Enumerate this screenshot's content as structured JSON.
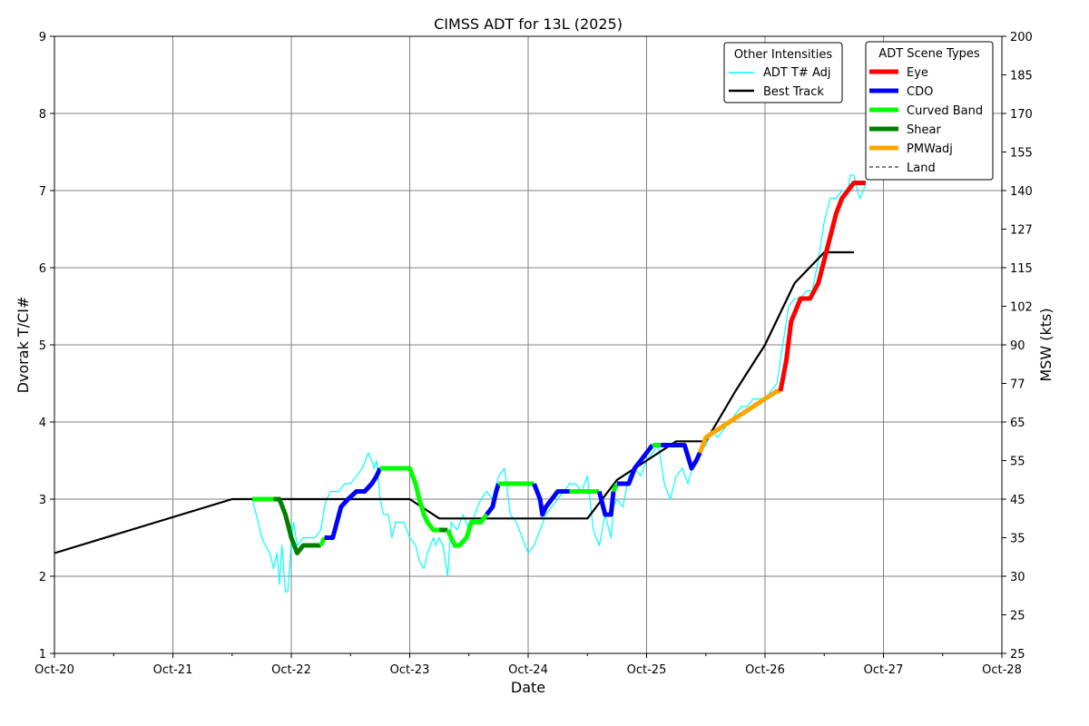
{
  "chart_data": {
    "type": "line",
    "title": "CIMSS ADT for 13L (2025)",
    "xlabel": "Date",
    "ylabel_left": "Dvorak T/CI#",
    "ylabel_right": "MSW (kts)",
    "x_ticks": [
      "Oct-20",
      "Oct-21",
      "Oct-22",
      "Oct-23",
      "Oct-24",
      "Oct-25",
      "Oct-26",
      "Oct-27",
      "Oct-28"
    ],
    "xlim": [
      "Oct-20",
      "Oct-28"
    ],
    "ylim_left": [
      1,
      9
    ],
    "y_ticks_left": [
      1,
      2,
      3,
      4,
      5,
      6,
      7,
      8,
      9
    ],
    "y_ticks_right": [
      {
        "t": 1,
        "label": "25"
      },
      {
        "t": 1.5,
        "label": "25"
      },
      {
        "t": 2,
        "label": "30"
      },
      {
        "t": 2.5,
        "label": "35"
      },
      {
        "t": 3,
        "label": "45"
      },
      {
        "t": 3.5,
        "label": "55"
      },
      {
        "t": 4,
        "label": "65"
      },
      {
        "t": 4.5,
        "label": "77"
      },
      {
        "t": 5,
        "label": "90"
      },
      {
        "t": 5.5,
        "label": "102"
      },
      {
        "t": 6,
        "label": "115"
      },
      {
        "t": 6.5,
        "label": "127"
      },
      {
        "t": 7,
        "label": "140"
      },
      {
        "t": 7.5,
        "label": "155"
      },
      {
        "t": 8,
        "label": "170"
      },
      {
        "t": 8.5,
        "label": "185"
      },
      {
        "t": 9,
        "label": "200"
      }
    ],
    "grid": true,
    "legends": [
      {
        "title": "Other Intensities",
        "placement": "top-right",
        "items": [
          {
            "label": "ADT T# Adj",
            "color": "#00ffff",
            "style": "thin"
          },
          {
            "label": "Best Track",
            "color": "#000000",
            "style": "medium"
          }
        ]
      },
      {
        "title": "ADT Scene Types",
        "placement": "top-right",
        "items": [
          {
            "label": "Eye",
            "color": "#ff0000",
            "style": "thick"
          },
          {
            "label": "CDO",
            "color": "#0000ff",
            "style": "thick"
          },
          {
            "label": "Curved Band",
            "color": "#00ff00",
            "style": "thick"
          },
          {
            "label": "Shear",
            "color": "#008000",
            "style": "thick"
          },
          {
            "label": "PMWadj",
            "color": "#ffa500",
            "style": "thick"
          },
          {
            "label": "Land",
            "color": "#000000",
            "style": "dashed"
          }
        ]
      }
    ],
    "series": [
      {
        "name": "Best Track",
        "color": "#000000",
        "x": [
          20.0,
          21.5,
          23.0,
          23.25,
          24.5,
          24.75,
          25.25,
          25.5,
          25.75,
          26.0,
          26.25,
          26.5,
          26.75
        ],
        "y": [
          2.3,
          3.0,
          3.0,
          2.75,
          2.75,
          3.25,
          3.75,
          3.75,
          4.4,
          5.0,
          5.8,
          6.2,
          6.2
        ]
      },
      {
        "name": "ADT T# Adj",
        "color": "#00ffff",
        "x": [
          21.67,
          21.72,
          21.75,
          21.78,
          21.82,
          21.85,
          21.88,
          21.9,
          21.92,
          21.95,
          21.97,
          21.99,
          22.0,
          22.02,
          22.05,
          22.1,
          22.15,
          22.2,
          22.25,
          22.28,
          22.3,
          22.33,
          22.36,
          22.4,
          22.45,
          22.5,
          22.55,
          22.6,
          22.65,
          22.68,
          22.7,
          22.72,
          22.75,
          22.78,
          22.82,
          22.85,
          22.88,
          22.9,
          22.95,
          23.0,
          23.05,
          23.08,
          23.12,
          23.15,
          23.2,
          23.22,
          23.25,
          23.28,
          23.32,
          23.35,
          23.4,
          23.45,
          23.5,
          23.55,
          23.6,
          23.65,
          23.7,
          23.75,
          23.8,
          23.85,
          23.9,
          23.95,
          24.0,
          24.05,
          24.1,
          24.15,
          24.2,
          24.25,
          24.3,
          24.35,
          24.4,
          24.45,
          24.5,
          24.55,
          24.6,
          24.65,
          24.7,
          24.72,
          24.75,
          24.8,
          24.85,
          24.9,
          24.95,
          25.0,
          25.05,
          25.1,
          25.15,
          25.2,
          25.25,
          25.3,
          25.35,
          25.4,
          25.45,
          25.5,
          25.55,
          25.6,
          25.65,
          25.7,
          25.75,
          25.8,
          25.85,
          25.9,
          25.95,
          26.0,
          26.05,
          26.1,
          26.15,
          26.2,
          26.25,
          26.3,
          26.35,
          26.4,
          26.45,
          26.5,
          26.55,
          26.6,
          26.65,
          26.7,
          26.72,
          26.75,
          26.78,
          26.8,
          26.83,
          26.85
        ],
        "y": [
          3.0,
          2.7,
          2.5,
          2.4,
          2.3,
          2.1,
          2.3,
          1.9,
          2.4,
          1.8,
          1.8,
          2.2,
          2.5,
          2.7,
          2.4,
          2.5,
          2.5,
          2.5,
          2.6,
          2.9,
          3.0,
          3.1,
          3.1,
          3.1,
          3.2,
          3.2,
          3.3,
          3.4,
          3.6,
          3.5,
          3.4,
          3.5,
          3.0,
          2.8,
          2.8,
          2.5,
          2.7,
          2.7,
          2.7,
          2.5,
          2.4,
          2.2,
          2.1,
          2.3,
          2.5,
          2.4,
          2.5,
          2.4,
          2.0,
          2.7,
          2.6,
          2.8,
          2.6,
          2.8,
          3.0,
          3.1,
          3.0,
          3.3,
          3.4,
          2.8,
          2.7,
          2.5,
          2.3,
          2.4,
          2.6,
          2.8,
          2.9,
          3.0,
          3.1,
          3.2,
          3.2,
          3.1,
          3.3,
          2.6,
          2.4,
          2.8,
          2.5,
          2.9,
          3.0,
          2.9,
          3.3,
          3.4,
          3.3,
          3.5,
          3.6,
          3.7,
          3.2,
          3.0,
          3.3,
          3.4,
          3.2,
          3.5,
          3.6,
          3.7,
          3.9,
          3.8,
          3.9,
          4.0,
          4.1,
          4.2,
          4.2,
          4.3,
          4.3,
          4.3,
          4.4,
          4.5,
          5.0,
          5.5,
          5.6,
          5.6,
          5.7,
          5.7,
          6.1,
          6.6,
          6.9,
          6.9,
          7.0,
          7.0,
          7.2,
          7.2,
          7.0,
          6.9,
          7.0,
          7.1
        ],
        "scene_segments": [
          {
            "type": "Curved Band",
            "x": [
              21.67,
              21.85
            ],
            "y": [
              3.0,
              3.0
            ]
          },
          {
            "type": "Shear",
            "x": [
              21.85,
              21.9,
              21.95,
              22.0,
              22.05,
              22.1,
              22.15,
              22.25
            ],
            "y": [
              3.0,
              3.0,
              2.8,
              2.5,
              2.3,
              2.4,
              2.4,
              2.4
            ]
          },
          {
            "type": "Curved Band",
            "x": [
              22.25,
              22.28
            ],
            "y": [
              2.4,
              2.5
            ]
          },
          {
            "type": "CDO",
            "x": [
              22.28,
              22.35,
              22.42,
              22.48,
              22.55,
              22.62,
              22.68,
              22.72,
              22.75
            ],
            "y": [
              2.5,
              2.5,
              2.9,
              3.0,
              3.1,
              3.1,
              3.2,
              3.3,
              3.4
            ]
          },
          {
            "type": "Curved Band",
            "x": [
              22.75,
              23.0,
              23.05,
              23.08,
              23.12,
              23.15,
              23.2,
              23.28,
              23.3
            ],
            "y": [
              3.4,
              3.4,
              3.2,
              3.0,
              2.8,
              2.7,
              2.6,
              2.6,
              2.6
            ]
          },
          {
            "type": "Shear",
            "x": [
              23.25,
              23.3,
              23.32
            ],
            "y": [
              2.6,
              2.6,
              2.6
            ]
          },
          {
            "type": "Curved Band",
            "x": [
              23.32,
              23.38,
              23.42,
              23.48,
              23.52,
              23.6,
              23.65
            ],
            "y": [
              2.6,
              2.4,
              2.4,
              2.5,
              2.7,
              2.7,
              2.8
            ]
          },
          {
            "type": "CDO",
            "x": [
              23.65,
              23.7,
              23.73,
              23.75
            ],
            "y": [
              2.8,
              2.9,
              3.1,
              3.2
            ]
          },
          {
            "type": "Curved Band",
            "x": [
              23.75,
              24.05
            ],
            "y": [
              3.2,
              3.2
            ]
          },
          {
            "type": "CDO",
            "x": [
              24.05,
              24.1,
              24.12,
              24.15,
              24.2,
              24.25,
              24.3,
              24.35
            ],
            "y": [
              3.2,
              3.0,
              2.8,
              2.9,
              3.0,
              3.1,
              3.1,
              3.1
            ]
          },
          {
            "type": "Curved Band",
            "x": [
              24.35,
              24.6
            ],
            "y": [
              3.1,
              3.1
            ]
          },
          {
            "type": "CDO",
            "x": [
              24.6,
              24.65,
              24.7,
              24.72
            ],
            "y": [
              3.1,
              2.8,
              2.8,
              3.1
            ]
          },
          {
            "type": "Curved Band",
            "x": [
              24.72,
              24.75
            ],
            "y": [
              3.1,
              3.2
            ]
          },
          {
            "type": "CDO",
            "x": [
              24.75,
              24.8,
              24.85,
              24.9,
              24.95,
              25.0,
              25.05
            ],
            "y": [
              3.2,
              3.2,
              3.2,
              3.4,
              3.5,
              3.6,
              3.7
            ]
          },
          {
            "type": "Curved Band",
            "x": [
              25.05,
              25.12
            ],
            "y": [
              3.7,
              3.7
            ]
          },
          {
            "type": "CDO",
            "x": [
              25.12,
              25.25,
              25.32,
              25.38,
              25.42,
              25.45
            ],
            "y": [
              3.7,
              3.7,
              3.7,
              3.4,
              3.5,
              3.6
            ]
          },
          {
            "type": "PMWadj",
            "x": [
              25.45,
              25.5,
              25.6,
              25.7,
              25.8,
              25.9,
              26.0,
              26.1,
              26.13
            ],
            "y": [
              3.6,
              3.8,
              3.9,
              4.0,
              4.1,
              4.2,
              4.3,
              4.4,
              4.4
            ]
          },
          {
            "type": "Eye",
            "x": [
              26.13,
              26.18,
              26.22,
              26.3,
              26.38,
              26.45,
              26.5,
              26.55,
              26.6,
              26.65,
              26.7,
              26.75,
              26.85
            ],
            "y": [
              4.4,
              4.8,
              5.3,
              5.6,
              5.6,
              5.8,
              6.1,
              6.4,
              6.7,
              6.9,
              7.0,
              7.1,
              7.1
            ]
          }
        ]
      }
    ]
  }
}
